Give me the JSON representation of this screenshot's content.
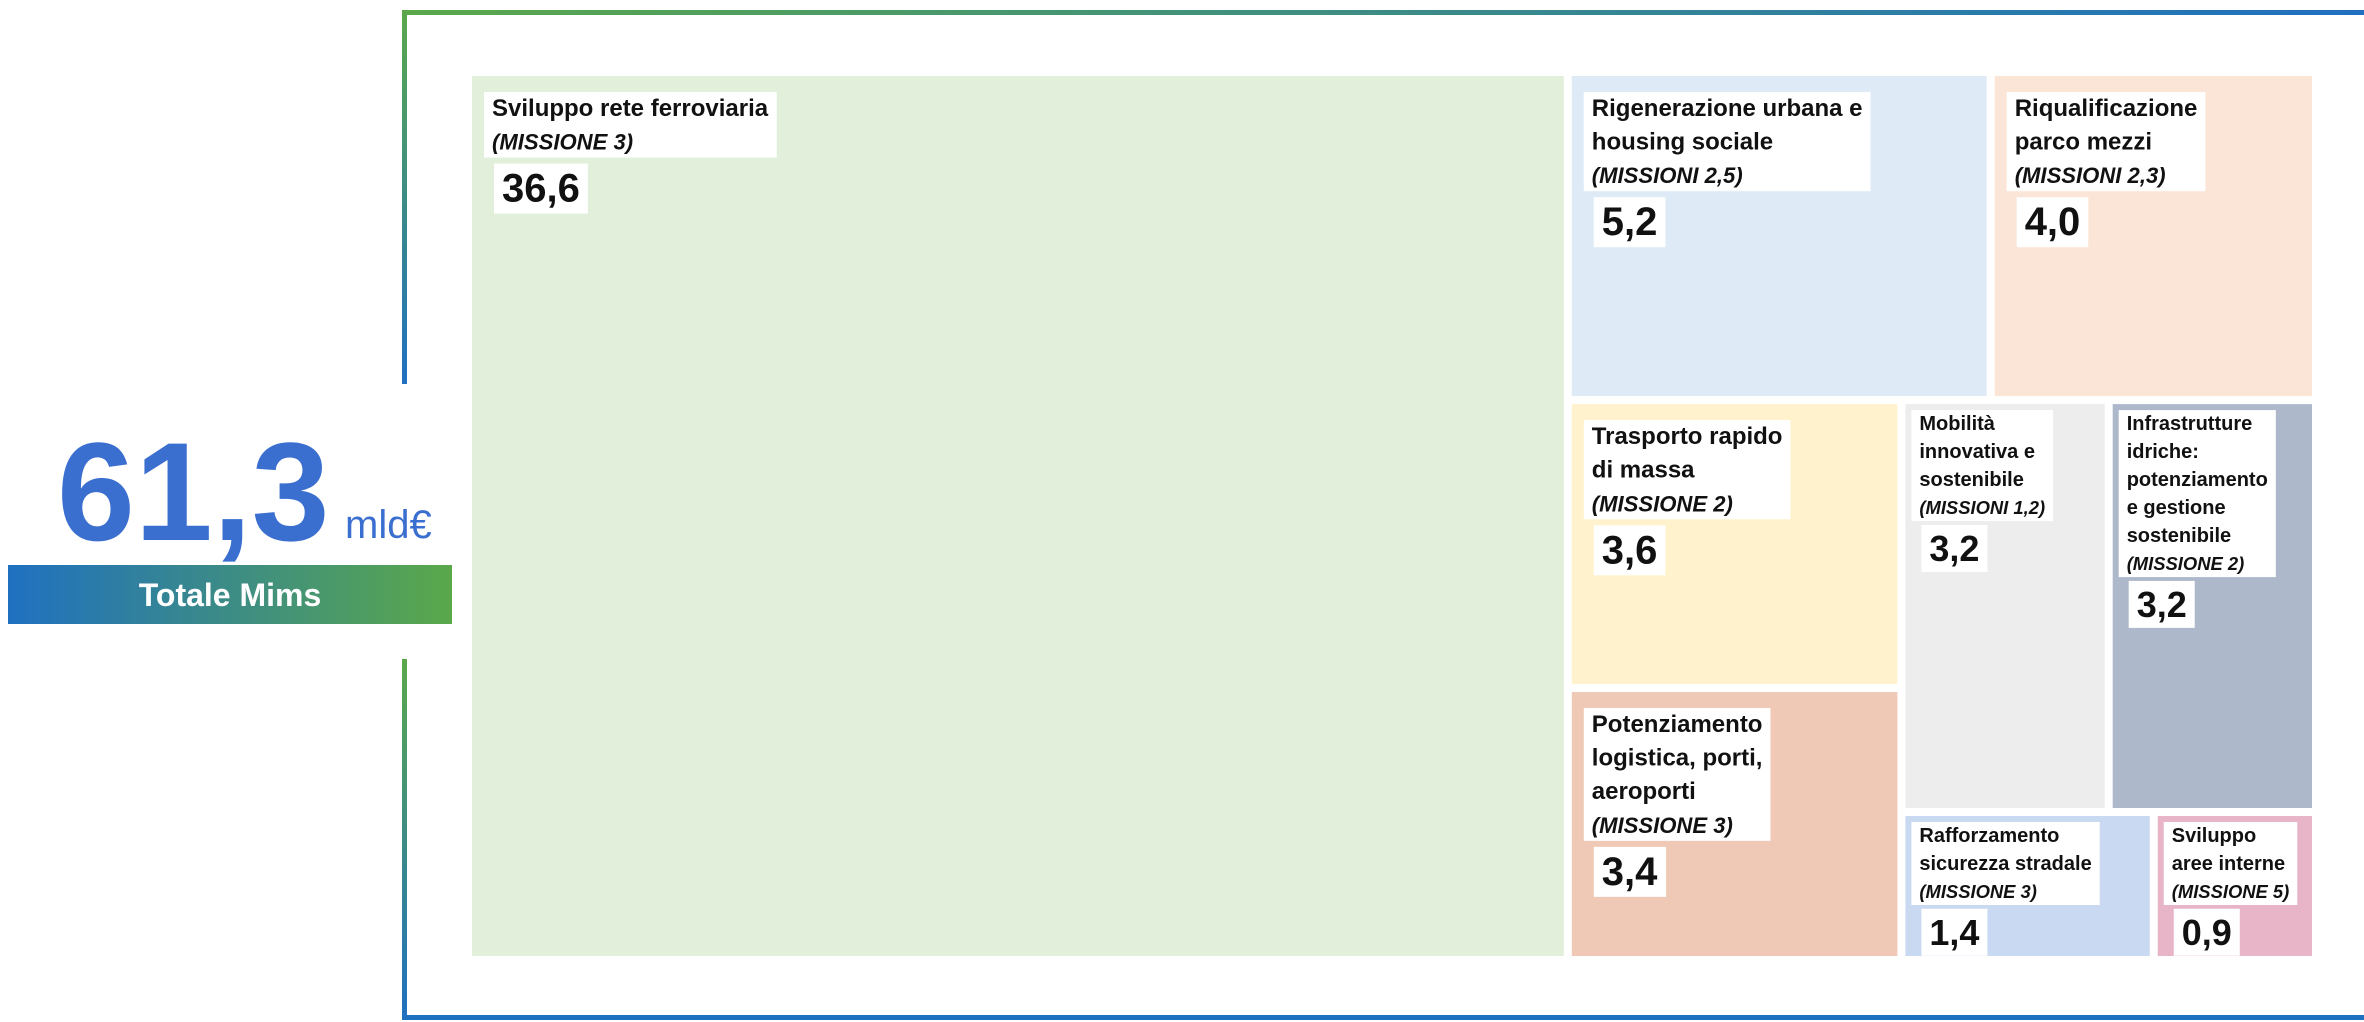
{
  "chart_data": {
    "type": "treemap",
    "total": 61.3,
    "total_label": "61,3",
    "total_unit": "mld€",
    "total_caption": "Totale Mims",
    "categories": [
      [
        "Sviluppo rete ferroviaria"
      ],
      [
        "Rigenerazione urbana e",
        "housing sociale"
      ],
      [
        "Riqualificazione",
        "parco mezzi"
      ],
      [
        "Trasporto rapido",
        "di massa"
      ],
      [
        "Mobilità",
        "innovativa e",
        "sostenibile"
      ],
      [
        "Infrastrutture",
        "idriche:",
        "potenziamento",
        "e gestione",
        "sostenibile"
      ],
      [
        "Potenziamento",
        "logistica, porti,",
        "aeroporti"
      ],
      [
        "Rafforzamento",
        "sicurezza stradale"
      ],
      [
        "Sviluppo",
        "aree interne"
      ]
    ],
    "missions": [
      "(MISSIONE 3)",
      "(MISSIONI 2,5)",
      "(MISSIONI 2,3)",
      "(MISSIONE 2)",
      "(MISSIONI 1,2)",
      "(MISSIONE 2)",
      "(MISSIONE 3)",
      "(MISSIONE 3)",
      "(MISSIONE 5)"
    ],
    "values": [
      36.6,
      5.2,
      4.0,
      3.6,
      3.2,
      3.2,
      3.4,
      1.4,
      0.9
    ],
    "value_labels": [
      "36,6",
      "5,2",
      "4,0",
      "3,6",
      "3,2",
      "3,2",
      "3,4",
      "1,4",
      "0,9"
    ],
    "colors": [
      "#e2efda",
      "#deebf7",
      "#fbe5d6",
      "#fff2cc",
      "#ededed",
      "#adb9ca",
      "#efc9b5",
      "#c9d9f1",
      "#e8b4c8"
    ]
  }
}
